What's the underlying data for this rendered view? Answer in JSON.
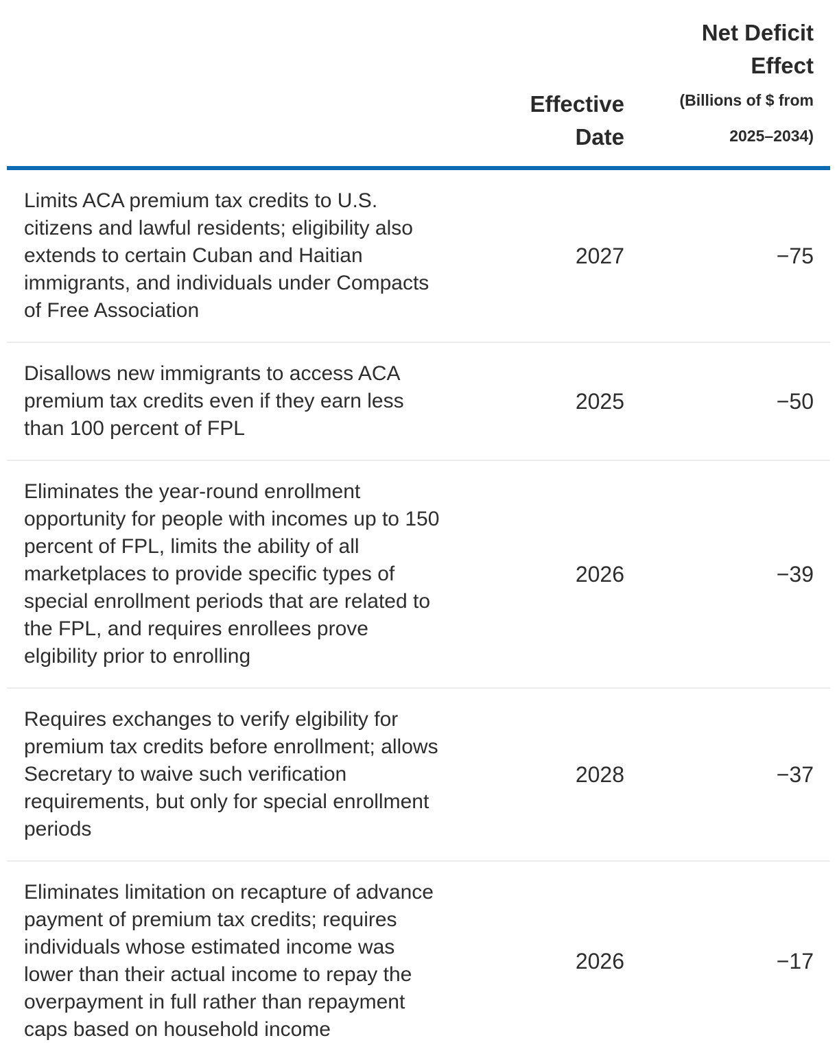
{
  "colors": {
    "accent_blue": "#0e6bb1",
    "row_divider": "#ebebeb",
    "text": "#2d2d2d",
    "background": "#ffffff"
  },
  "table": {
    "header": {
      "effective_date_label": "Effective Date",
      "net_deficit_title": "Net Deficit Effect",
      "net_deficit_subtitle": "(Billions of $ from\n2025–2034)"
    },
    "rows": [
      {
        "description": "Limits ACA premium tax credits to U.S. citizens and lawful residents; eligibility also extends to certain Cuban and Haitian immigrants, and individuals under Compacts of Free Association",
        "effective_date": "2027",
        "net_deficit_effect": "−75"
      },
      {
        "description": "Disallows new immigrants to access ACA premium tax credits even if they earn less than 100 percent of FPL",
        "effective_date": "2025",
        "net_deficit_effect": "−50"
      },
      {
        "description": "Eliminates the year-round enrollment opportunity for people with incomes up to 150 percent of FPL, limits the ability of all marketplaces to provide specific types of special enrollment periods that are related to the FPL, and requires enrollees prove elgibility prior to enrolling",
        "effective_date": "2026",
        "net_deficit_effect": "−39"
      },
      {
        "description": "Requires exchanges to verify elgibility for premium tax credits before enrollment; allows Secretary to waive such verification requirements, but only for special enrollment periods",
        "effective_date": "2028",
        "net_deficit_effect": "−37"
      },
      {
        "description": "Eliminates limitation on recapture of advance payment of premium tax credits; requires individuals whose estimated income was lower than their actual income to repay the overpayment in full rather than repayment caps based on household income",
        "effective_date": "2026",
        "net_deficit_effect": "−17"
      }
    ]
  }
}
